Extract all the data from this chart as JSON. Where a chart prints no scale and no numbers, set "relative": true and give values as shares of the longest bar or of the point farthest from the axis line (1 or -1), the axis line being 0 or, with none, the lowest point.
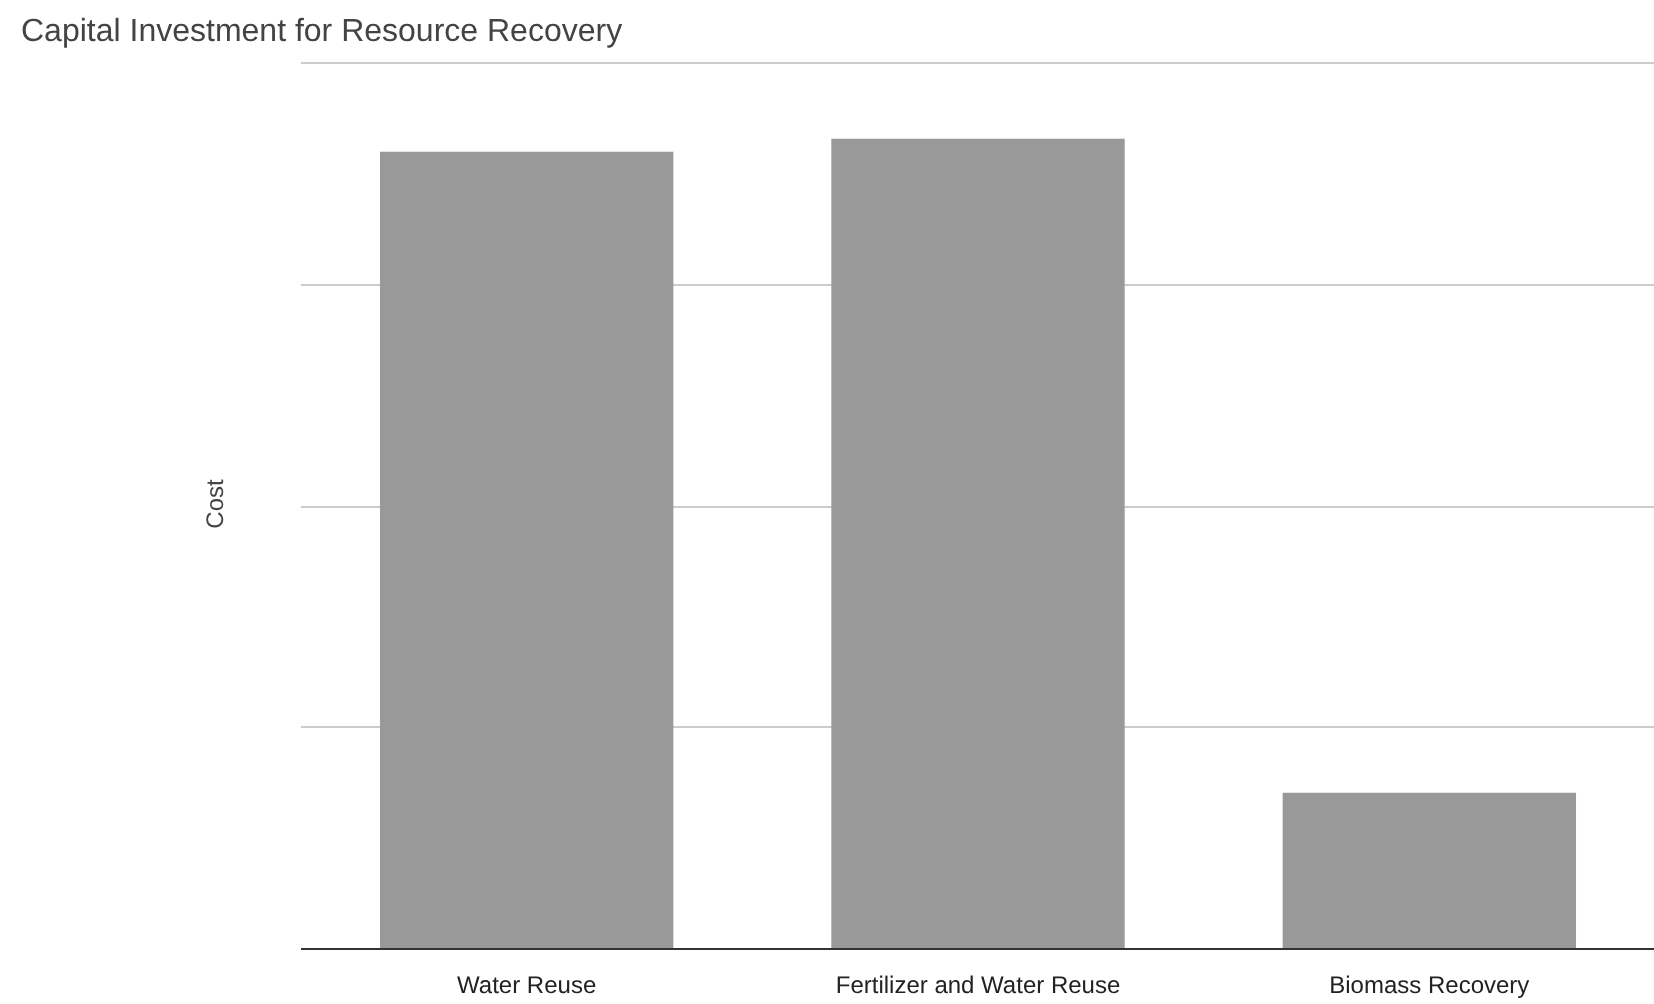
{
  "chart_data": {
    "type": "bar",
    "title": "Capital Investment for Resource Recovery",
    "ylabel": "Cost",
    "categories": [
      "Water Reuse",
      "Fertilizer and Water Reuse",
      "Biomass Recovery"
    ],
    "values": [
      0.984,
      1,
      0.193
    ],
    "color": "#999999",
    "relative": true,
    "grid": "y"
  }
}
